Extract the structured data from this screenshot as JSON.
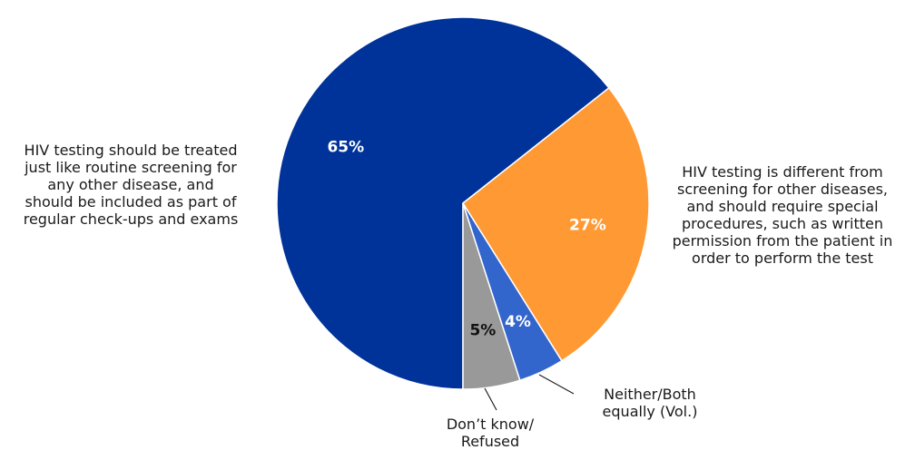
{
  "chart_data": {
    "type": "pie",
    "title": "",
    "start_angle_deg": 180,
    "direction": "clockwise",
    "slices": [
      {
        "label": "HIV testing should be treated\njust like routine screening for\nany other disease, and\nshould be included as part of\nregular check-ups and exams",
        "value": 65,
        "value_label": "65%",
        "color": "#003399",
        "value_label_color": "#ffffff"
      },
      {
        "label": "HIV testing is different from\nscreening for other diseases,\nand should require special\nprocedures, such as written\npermission from the patient in\norder to perform the test",
        "value": 27,
        "value_label": "27%",
        "color": "#FF9933",
        "value_label_color": "#ffffff"
      },
      {
        "label": "Neither/Both\nequally (Vol.)",
        "value": 4,
        "value_label": "4%",
        "color": "#3366CC",
        "value_label_color": "#ffffff"
      },
      {
        "label": "Don’t know/\nRefused",
        "value": 5,
        "value_label": "5%",
        "color": "#999999",
        "value_label_color": "#111111"
      }
    ]
  }
}
